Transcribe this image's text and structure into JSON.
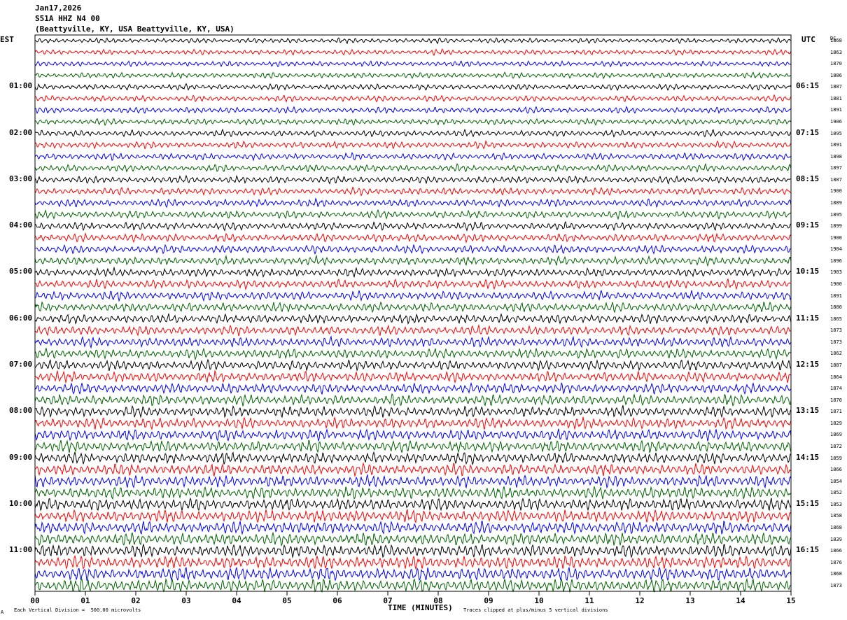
{
  "header": {
    "date": "Jan17,2026",
    "station": "S51A HHZ N4 00",
    "location": "(Beattyville, KY, USA Beattyville, KY, USA)"
  },
  "left_axis_title": "EST",
  "right_axis_title": "UTC",
  "dc_title": "DC",
  "footer": {
    "scale": "Each Vertical Division =  500.00 microvolts",
    "clip": "Traces clipped at plus/minus 5 vertical divisions",
    "corner_mark": "A"
  },
  "colors": {
    "trace_cycle": [
      "#000000",
      "#ff0000",
      "#0000ff",
      "#006400"
    ]
  },
  "chart_data": {
    "type": "line",
    "xlabel": "TIME (MINUTES)",
    "xlim": [
      0,
      15
    ],
    "x_ticks": [
      "00",
      "01",
      "02",
      "03",
      "04",
      "05",
      "06",
      "07",
      "08",
      "09",
      "10",
      "11",
      "12",
      "13",
      "14",
      "15"
    ],
    "left_time_labels": [
      {
        "line": 4,
        "text": "01:00"
      },
      {
        "line": 8,
        "text": "02:00"
      },
      {
        "line": 12,
        "text": "03:00"
      },
      {
        "line": 16,
        "text": "04:00"
      },
      {
        "line": 20,
        "text": "05:00"
      },
      {
        "line": 24,
        "text": "06:00"
      },
      {
        "line": 28,
        "text": "07:00"
      },
      {
        "line": 32,
        "text": "08:00"
      },
      {
        "line": 36,
        "text": "09:00"
      },
      {
        "line": 40,
        "text": "10:00"
      },
      {
        "line": 44,
        "text": "11:00"
      }
    ],
    "right_time_labels": [
      {
        "line": 4,
        "text": "06:15"
      },
      {
        "line": 8,
        "text": "07:15"
      },
      {
        "line": 12,
        "text": "08:15"
      },
      {
        "line": 16,
        "text": "09:15"
      },
      {
        "line": 20,
        "text": "10:15"
      },
      {
        "line": 24,
        "text": "11:15"
      },
      {
        "line": 28,
        "text": "12:15"
      },
      {
        "line": 32,
        "text": "13:15"
      },
      {
        "line": 36,
        "text": "14:15"
      },
      {
        "line": 40,
        "text": "15:15"
      },
      {
        "line": 44,
        "text": "16:15"
      }
    ],
    "dc_offsets": [
      1868,
      1863,
      1870,
      1886,
      1887,
      1881,
      1891,
      1906,
      1895,
      1891,
      1898,
      1897,
      1887,
      1900,
      1889,
      1895,
      1899,
      1900,
      1904,
      1896,
      1903,
      1900,
      1891,
      1880,
      1865,
      1873,
      1873,
      1862,
      1887,
      1864,
      1874,
      1870,
      1871,
      1829,
      1869,
      1872,
      1859,
      1866,
      1854,
      1852,
      1853,
      1858,
      1868,
      1839,
      1866,
      1876,
      1868,
      1873
    ]
  }
}
